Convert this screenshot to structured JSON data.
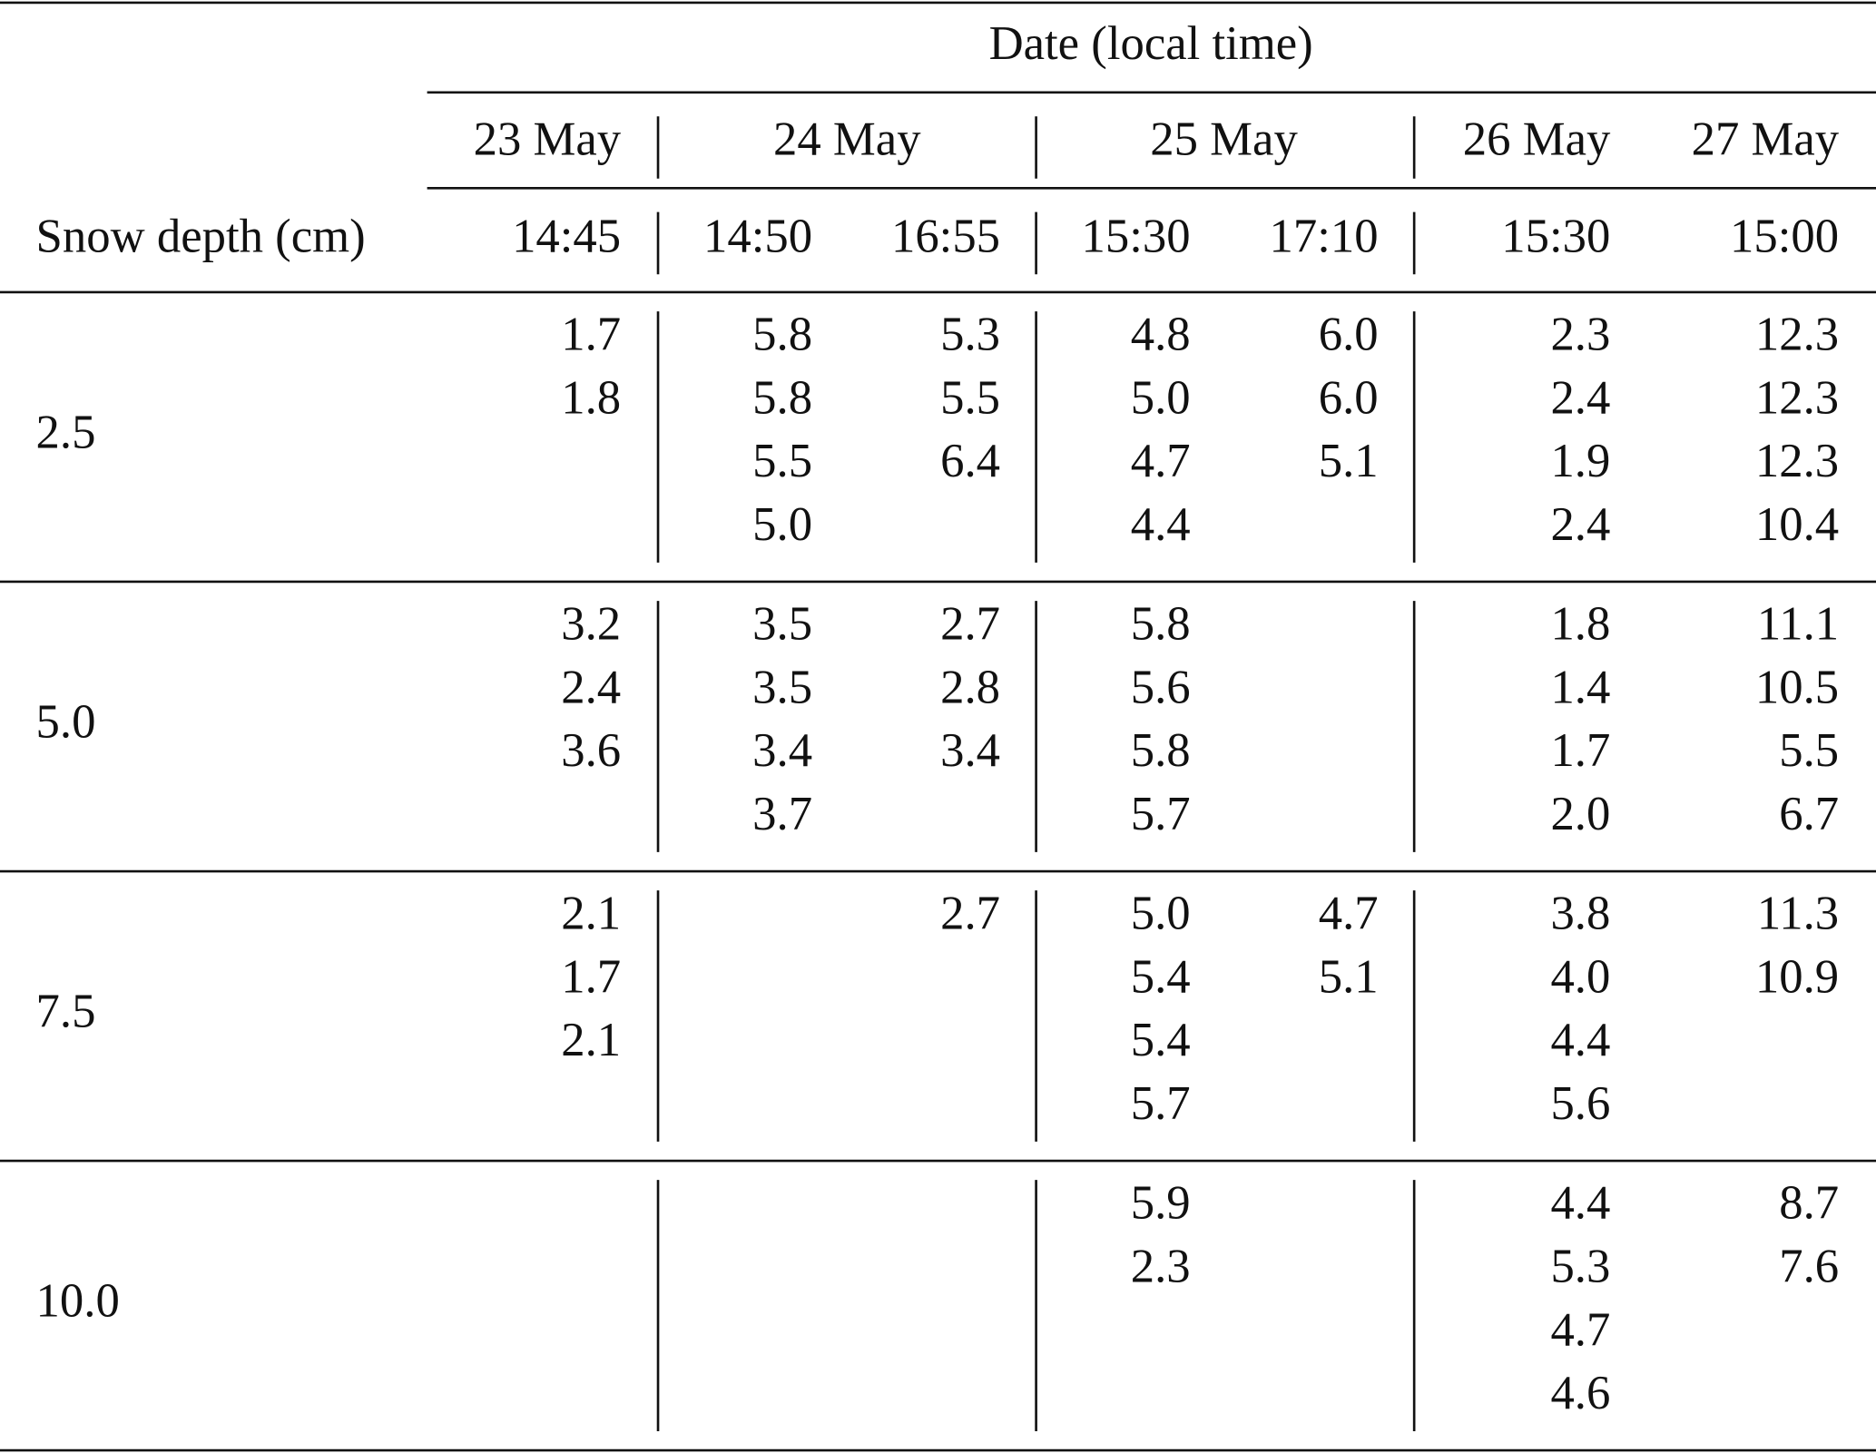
{
  "header": {
    "title": "Date (local time)",
    "row_label": "Snow depth (cm)",
    "dates": [
      "23 May",
      "24 May",
      "25 May",
      "26 May",
      "27 May"
    ],
    "times": [
      "14:45",
      "14:50",
      "16:55",
      "15:30",
      "17:10",
      "15:30",
      "15:00"
    ]
  },
  "rows": [
    {
      "depth": "2.5",
      "cells": [
        [
          "1.7",
          "1.8"
        ],
        [
          "5.8",
          "5.8",
          "5.5",
          "5.0"
        ],
        [
          "5.3",
          "5.5",
          "6.4"
        ],
        [
          "4.8",
          "5.0",
          "4.7",
          "4.4"
        ],
        [
          "6.0",
          "6.0",
          "5.1"
        ],
        [
          "2.3",
          "2.4",
          "1.9",
          "2.4"
        ],
        [
          "12.3",
          "12.3",
          "12.3",
          "10.4"
        ]
      ]
    },
    {
      "depth": "5.0",
      "cells": [
        [
          "3.2",
          "2.4",
          "3.6"
        ],
        [
          "3.5",
          "3.5",
          "3.4",
          "3.7"
        ],
        [
          "2.7",
          "2.8",
          "3.4"
        ],
        [
          "5.8",
          "5.6",
          "5.8",
          "5.7"
        ],
        [],
        [
          "1.8",
          "1.4",
          "1.7",
          "2.0"
        ],
        [
          "11.1",
          "10.5",
          "5.5",
          "6.7"
        ]
      ]
    },
    {
      "depth": "7.5",
      "cells": [
        [
          "2.1",
          "1.7",
          "2.1"
        ],
        [],
        [
          "2.7"
        ],
        [
          "5.0",
          "5.4",
          "5.4",
          "5.7"
        ],
        [
          "4.7",
          "5.1"
        ],
        [
          "3.8",
          "4.0",
          "4.4",
          "5.6"
        ],
        [
          "11.3",
          "10.9"
        ]
      ]
    },
    {
      "depth": "10.0",
      "cells": [
        [],
        [],
        [],
        [
          "5.9",
          "2.3"
        ],
        [],
        [
          "4.4",
          "5.3",
          "4.7",
          "4.6"
        ],
        [
          "8.7",
          "7.6"
        ]
      ]
    }
  ]
}
